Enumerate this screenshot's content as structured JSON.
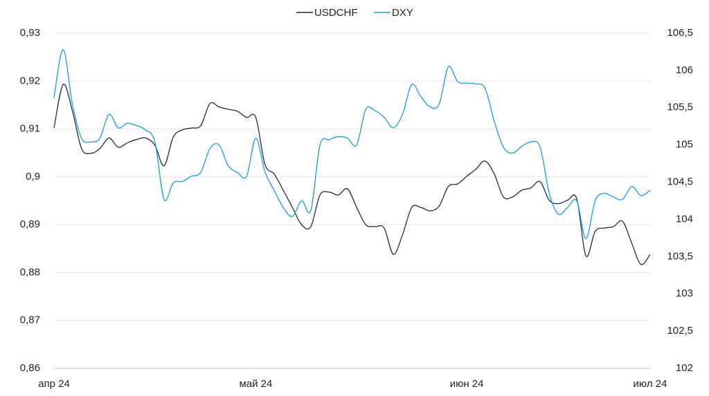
{
  "chart_data": {
    "type": "line",
    "categories": [
      "апр 24",
      null,
      null,
      null,
      null,
      null,
      null,
      null,
      null,
      null,
      null,
      null,
      null,
      null,
      null,
      null,
      null,
      null,
      null,
      null,
      null,
      null,
      "май 24",
      null,
      null,
      null,
      null,
      null,
      null,
      null,
      null,
      null,
      null,
      null,
      null,
      null,
      null,
      null,
      null,
      null,
      null,
      null,
      null,
      null,
      null,
      "июн 24",
      null,
      null,
      null,
      null,
      null,
      null,
      null,
      null,
      null,
      null,
      null,
      null,
      null,
      null,
      null,
      null,
      null,
      null,
      null,
      "июл 24"
    ],
    "series": [
      {
        "name": "USDCHF",
        "color": "#1f2a44",
        "axis": "y",
        "values": [
          0.9102,
          0.9193,
          0.9138,
          0.9059,
          0.9049,
          0.9059,
          0.9081,
          0.9062,
          0.9071,
          0.9078,
          0.9081,
          0.9066,
          0.9023,
          0.9083,
          0.9098,
          0.9102,
          0.9107,
          0.9153,
          0.9146,
          0.9141,
          0.9137,
          0.9124,
          0.9124,
          0.9026,
          0.9006,
          0.8972,
          0.8936,
          0.89,
          0.8896,
          0.8962,
          0.8968,
          0.8962,
          0.8975,
          0.8936,
          0.89,
          0.8896,
          0.8893,
          0.8838,
          0.8879,
          0.8936,
          0.8936,
          0.8929,
          0.8939,
          0.898,
          0.8985,
          0.9001,
          0.9016,
          0.9033,
          0.9006,
          0.8958,
          0.8958,
          0.8972,
          0.8977,
          0.899,
          0.8951,
          0.8944,
          0.8951,
          0.8954,
          0.8835,
          0.8886,
          0.8893,
          0.8896,
          0.8907,
          0.8861,
          0.8817,
          0.8838
        ]
      },
      {
        "name": "DXY",
        "color": "#1a9bd7",
        "axis": "y2",
        "values": [
          105.63,
          106.28,
          105.55,
          105.09,
          105.04,
          105.09,
          105.41,
          105.23,
          105.29,
          105.26,
          105.2,
          105.04,
          104.27,
          104.49,
          104.51,
          104.58,
          104.63,
          104.95,
          105.0,
          104.72,
          104.63,
          104.58,
          105.09,
          104.64,
          104.39,
          104.16,
          104.04,
          104.25,
          104.12,
          105.0,
          105.07,
          105.11,
          105.09,
          105.0,
          105.48,
          105.46,
          105.37,
          105.23,
          105.41,
          105.81,
          105.65,
          105.51,
          105.55,
          106.05,
          105.85,
          105.83,
          105.82,
          105.76,
          105.32,
          104.97,
          104.89,
          104.98,
          105.04,
          104.97,
          104.35,
          104.07,
          104.16,
          104.25,
          103.74,
          104.25,
          104.35,
          104.3,
          104.27,
          104.44,
          104.32,
          104.39
        ]
      }
    ],
    "ylim": [
      0.86,
      0.93
    ],
    "yticks": [
      {
        "value": 0.86,
        "label": "0,86"
      },
      {
        "value": 0.87,
        "label": "0,87"
      },
      {
        "value": 0.88,
        "label": "0,88"
      },
      {
        "value": 0.89,
        "label": "0,89"
      },
      {
        "value": 0.9,
        "label": "0,9"
      },
      {
        "value": 0.91,
        "label": "0,91"
      },
      {
        "value": 0.92,
        "label": "0,92"
      },
      {
        "value": 0.93,
        "label": "0,93"
      }
    ],
    "y2lim": [
      102,
      106.5
    ],
    "y2ticks": [
      102,
      {
        "value": 102.5,
        "label": "102,5"
      },
      103,
      {
        "value": 103.5,
        "label": "103,5"
      },
      104,
      {
        "value": 104.5,
        "label": "104,5"
      },
      105,
      {
        "value": 105.5,
        "label": "105,5"
      },
      106,
      {
        "value": 106.5,
        "label": "106,5"
      }
    ],
    "grid": true,
    "legend": "top"
  }
}
